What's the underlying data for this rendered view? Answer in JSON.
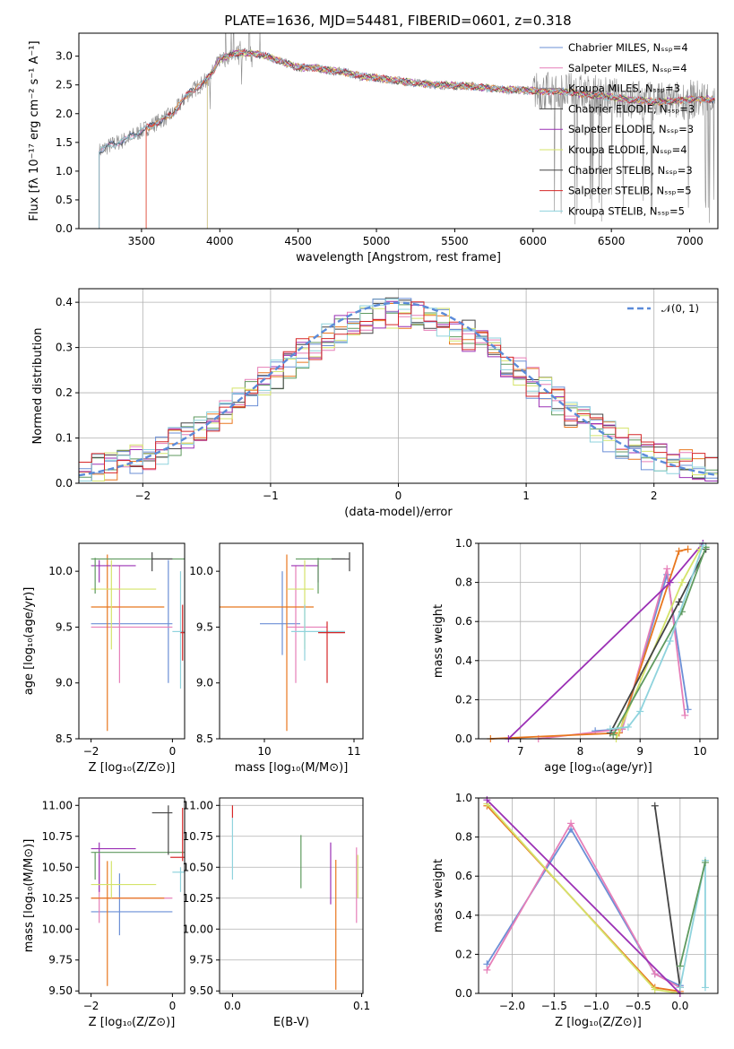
{
  "title": "PLATE=1636, MJD=54481, FIBERID=0601, z=0.318",
  "colors": {
    "blue": "#6b8fd6",
    "pink": "#e67fb8",
    "grey": "#8c8c8c",
    "orange": "#e8771e",
    "purple": "#9b30b5",
    "yellow": "#d4e36a",
    "dark": "#444444",
    "red": "#d62728",
    "cyan": "#8fd3dd",
    "green": "#5f9a5f",
    "dashed": "#5b8bd9"
  },
  "chart_data": [
    {
      "type": "line",
      "name": "spectrum",
      "xlabel": "wavelength [Angstrom, rest frame]",
      "ylabel": "Flux [fλ 10⁻¹⁷ erg cm⁻² s⁻¹ A⁻¹]",
      "xlim": [
        3100,
        7180
      ],
      "ylim": [
        0,
        3.4
      ],
      "xticks": [
        "3500",
        "4000",
        "4500",
        "5000",
        "5500",
        "6000",
        "6500",
        "7000"
      ],
      "yticks": [
        "0.0",
        "0.5",
        "1.0",
        "1.5",
        "2.0",
        "2.5",
        "3.0"
      ],
      "legend": [
        "Chabrier MILES, N_SSP=4",
        "Salpeter MILES, N_SSP=4",
        "Kroupa MILES, N_SSP=3",
        "Chabrier ELODIE, N_SSP=3",
        "Salpeter ELODIE, N_SSP=3",
        "Kroupa ELODIE, N_SSP=4",
        "Chabrier STELIB, N_SSP=3",
        "Salpeter STELIB, N_SSP=5",
        "Kroupa STELIB, N_SSP=5"
      ],
      "legend_placement": "top-right",
      "model_continuum": {
        "x": [
          3230,
          3300,
          3400,
          3500,
          3600,
          3700,
          3800,
          3900,
          3950,
          4000,
          4100,
          4200,
          4300,
          4400,
          4500,
          4600,
          4700,
          4800,
          4900,
          5000,
          5200,
          5400,
          5600,
          5800,
          6000,
          6200,
          6400,
          6600,
          6800,
          7000
        ],
        "y": [
          1.35,
          1.45,
          1.55,
          1.7,
          1.85,
          2.0,
          2.35,
          2.55,
          2.7,
          2.95,
          3.05,
          3.05,
          3.0,
          2.9,
          2.8,
          2.8,
          2.75,
          2.72,
          2.65,
          2.62,
          2.55,
          2.5,
          2.48,
          2.42,
          2.4,
          2.38,
          2.32,
          2.25,
          2.2,
          2.25
        ]
      },
      "cutoffs": {
        "kroupa_stelib_start": 3230,
        "salpeter_stelib_start": 3530,
        "elodie_start": 3920
      }
    },
    {
      "type": "bar",
      "name": "residual_histogram",
      "xlabel": "(data-model)/error",
      "ylabel": "Normed distribution",
      "xlim": [
        -2.5,
        2.5
      ],
      "ylim": [
        0,
        0.43
      ],
      "xticks": [
        "−2",
        "−1",
        "0",
        "1",
        "2"
      ],
      "yticks": [
        "0.0",
        "0.1",
        "0.2",
        "0.3",
        "0.4"
      ],
      "legend": [
        "𝒩(0, 1)"
      ],
      "bin_width": 0.1,
      "normal_curve": {
        "mean": 0,
        "sigma": 1
      }
    },
    {
      "type": "scatter",
      "name": "Z_vs_age",
      "xlabel": "Z [log₁₀(Z/Z⊙)]",
      "ylabel": "age  [log₁₀(age/yr)]",
      "xlim": [
        -2.3,
        0.3
      ],
      "ylim": [
        8.5,
        10.25
      ],
      "xticks": [
        "−2",
        "0"
      ],
      "yticks": [
        "8.5",
        "9.0",
        "9.5",
        "10.0"
      ],
      "crosses": [
        {
          "color": "blue",
          "x": -0.1,
          "y": 9.53,
          "x_lo": -2.0,
          "x_hi": 0.0,
          "y_lo": 9.0,
          "y_hi": 10.1
        },
        {
          "color": "pink",
          "x": -1.3,
          "y": 9.5,
          "x_lo": -2.0,
          "x_hi": 0.0,
          "y_lo": 9.0,
          "y_hi": 10.05
        },
        {
          "color": "orange",
          "x": -1.6,
          "y": 9.68,
          "x_lo": -2.0,
          "x_hi": -0.2,
          "y_lo": 8.57,
          "y_hi": 10.15
        },
        {
          "color": "purple",
          "x": -1.8,
          "y": 10.05,
          "x_lo": -2.0,
          "x_hi": -0.9,
          "y_lo": 9.9,
          "y_hi": 10.1
        },
        {
          "color": "yellow",
          "x": -1.5,
          "y": 9.84,
          "x_lo": -2.0,
          "x_hi": -0.4,
          "y_lo": 9.3,
          "y_hi": 10.1
        },
        {
          "color": "green",
          "x": -1.9,
          "y": 10.11,
          "x_lo": -2.0,
          "x_hi": 0.3,
          "y_lo": 9.8,
          "y_hi": 10.12
        },
        {
          "color": "dark",
          "x": -0.5,
          "y": 10.11,
          "x_lo": -0.5,
          "x_hi": 0.0,
          "y_lo": 10.0,
          "y_hi": 10.17
        },
        {
          "color": "cyan",
          "x": 0.2,
          "y": 9.46,
          "x_lo": 0.0,
          "x_hi": 0.3,
          "y_lo": 8.95,
          "y_hi": 10.0
        },
        {
          "color": "red",
          "x": 0.25,
          "y": 9.45,
          "x_lo": 0.2,
          "x_hi": 0.3,
          "y_lo": 9.2,
          "y_hi": 9.7
        }
      ]
    },
    {
      "type": "scatter",
      "name": "mass_vs_age",
      "xlabel": "mass [log₁₀(M/M⊙)]",
      "ylabel": "",
      "xlim": [
        9.5,
        11.1
      ],
      "ylim": [
        8.5,
        10.25
      ],
      "xticks": [
        "10",
        "11"
      ],
      "yticks": [
        "8.5",
        "9.0",
        "9.5",
        "10.0"
      ],
      "crosses": [
        {
          "color": "blue",
          "x": 10.2,
          "y": 9.53,
          "x_lo": 9.95,
          "x_hi": 10.4,
          "y_lo": 9.25,
          "y_hi": 10.0
        },
        {
          "color": "pink",
          "x": 10.35,
          "y": 9.5,
          "x_lo": 10.25,
          "x_hi": 10.7,
          "y_lo": 9.0,
          "y_hi": 10.05
        },
        {
          "color": "orange",
          "x": 10.25,
          "y": 9.68,
          "x_lo": 9.45,
          "x_hi": 10.55,
          "y_lo": 8.57,
          "y_hi": 10.15
        },
        {
          "color": "purple",
          "x": 10.6,
          "y": 10.05,
          "x_lo": 10.3,
          "x_hi": 10.6,
          "y_lo": 9.9,
          "y_hi": 10.1
        },
        {
          "color": "yellow",
          "x": 10.45,
          "y": 9.84,
          "x_lo": 10.25,
          "x_hi": 10.55,
          "y_lo": 9.3,
          "y_hi": 10.1
        },
        {
          "color": "green",
          "x": 10.6,
          "y": 10.11,
          "x_lo": 10.35,
          "x_hi": 10.9,
          "y_lo": 9.8,
          "y_hi": 10.12
        },
        {
          "color": "dark",
          "x": 10.95,
          "y": 10.11,
          "x_lo": 10.75,
          "x_hi": 10.95,
          "y_lo": 10.0,
          "y_hi": 10.17
        },
        {
          "color": "cyan",
          "x": 10.45,
          "y": 9.46,
          "x_lo": 10.3,
          "x_hi": 10.9,
          "y_lo": 9.2,
          "y_hi": 9.7
        },
        {
          "color": "red",
          "x": 10.7,
          "y": 9.45,
          "x_lo": 10.6,
          "x_hi": 10.9,
          "y_lo": 9.0,
          "y_hi": 9.55
        }
      ]
    },
    {
      "type": "line",
      "name": "age_mass_weight",
      "xlabel": "age  [log₁₀(age/yr)]",
      "ylabel": "mass weight",
      "xlim": [
        6.3,
        10.3
      ],
      "ylim": [
        0,
        1.0
      ],
      "xticks": [
        "7",
        "8",
        "9",
        "10"
      ],
      "yticks": [
        "0.0",
        "0.2",
        "0.4",
        "0.6",
        "0.8",
        "1.0"
      ],
      "series": [
        {
          "color": "blue",
          "x": [
            8.25,
            8.7,
            9.45,
            9.8
          ],
          "y": [
            0.04,
            0.05,
            0.84,
            0.15
          ]
        },
        {
          "color": "pink",
          "x": [
            7.3,
            8.7,
            9.45,
            9.75
          ],
          "y": [
            0.0,
            0.05,
            0.87,
            0.12
          ]
        },
        {
          "color": "orange",
          "x": [
            6.5,
            8.65,
            9.65,
            9.8
          ],
          "y": [
            0.0,
            0.03,
            0.96,
            0.97
          ]
        },
        {
          "color": "purple",
          "x": [
            6.8,
            9.5,
            10.05
          ],
          "y": [
            0.0,
            0.8,
            1.0
          ]
        },
        {
          "color": "yellow",
          "x": [
            8.6,
            9.7,
            10.0
          ],
          "y": [
            0.0,
            0.8,
            0.97
          ]
        },
        {
          "color": "dark",
          "x": [
            8.5,
            9.65,
            10.1
          ],
          "y": [
            0.03,
            0.7,
            0.97
          ]
        },
        {
          "color": "green",
          "x": [
            8.55,
            9.7,
            10.1
          ],
          "y": [
            0.02,
            0.65,
            0.98
          ]
        },
        {
          "color": "cyan",
          "x": [
            8.5,
            8.8,
            9.0,
            9.5,
            10.05
          ],
          "y": [
            0.05,
            0.06,
            0.14,
            0.5,
            0.99
          ]
        }
      ]
    },
    {
      "type": "scatter",
      "name": "Z_vs_mass",
      "xlabel": "Z [log₁₀(Z/Z⊙)]",
      "ylabel": "mass [log₁₀(M/M⊙)]",
      "xlim": [
        -2.3,
        0.3
      ],
      "ylim": [
        9.48,
        11.06
      ],
      "xticks": [
        "−2",
        "0"
      ],
      "yticks": [
        "9.50",
        "9.75",
        "10.00",
        "10.25",
        "10.50",
        "10.75",
        "11.00"
      ],
      "crosses": [
        {
          "color": "blue",
          "x": -1.3,
          "y": 10.14,
          "x_lo": -2.0,
          "x_hi": 0.0,
          "y_lo": 9.95,
          "y_hi": 10.45
        },
        {
          "color": "pink",
          "x": -1.8,
          "y": 10.25,
          "x_lo": -2.0,
          "x_hi": 0.0,
          "y_lo": 10.05,
          "y_hi": 10.6
        },
        {
          "color": "orange",
          "x": -1.6,
          "y": 10.25,
          "x_lo": -2.0,
          "x_hi": -0.2,
          "y_lo": 9.54,
          "y_hi": 10.55
        },
        {
          "color": "purple",
          "x": -1.8,
          "y": 10.65,
          "x_lo": -2.0,
          "x_hi": -0.9,
          "y_lo": 10.3,
          "y_hi": 10.7
        },
        {
          "color": "yellow",
          "x": -1.5,
          "y": 10.36,
          "x_lo": -2.0,
          "x_hi": -0.4,
          "y_lo": 10.25,
          "y_hi": 10.55
        },
        {
          "color": "green",
          "x": -1.9,
          "y": 10.62,
          "x_lo": -2.0,
          "x_hi": 0.3,
          "y_lo": 10.4,
          "y_hi": 10.62
        },
        {
          "color": "dark",
          "x": -0.1,
          "y": 10.94,
          "x_lo": -0.5,
          "x_hi": 0.0,
          "y_lo": 10.6,
          "y_hi": 11.0
        },
        {
          "color": "cyan",
          "x": 0.2,
          "y": 10.46,
          "x_lo": 0.0,
          "x_hi": 0.3,
          "y_lo": 10.3,
          "y_hi": 10.5
        },
        {
          "color": "red",
          "x": 0.25,
          "y": 10.58,
          "x_lo": -0.05,
          "x_hi": 0.3,
          "y_lo": 10.55,
          "y_hi": 10.98
        }
      ]
    },
    {
      "type": "scatter",
      "name": "EBV_vs_mass",
      "xlabel": "E(B-V)",
      "ylabel": "",
      "xlim": [
        -0.01,
        0.101
      ],
      "ylim": [
        9.48,
        11.06
      ],
      "xticks": [
        "0.0",
        "0.1"
      ],
      "yticks": [
        "9.50",
        "9.75",
        "10.00",
        "10.25",
        "10.50",
        "10.75",
        "11.00"
      ],
      "segments": [
        {
          "color": "cyan",
          "x": 0.0,
          "y_lo": 10.4,
          "y_hi": 10.9
        },
        {
          "color": "red",
          "x": 0.0,
          "y_lo": 10.9,
          "y_hi": 11.0
        },
        {
          "color": "green",
          "x": 0.053,
          "y_lo": 10.33,
          "y_hi": 10.76
        },
        {
          "color": "purple",
          "x": 0.076,
          "y_lo": 10.2,
          "y_hi": 10.7
        },
        {
          "color": "orange",
          "x": 0.08,
          "y_lo": 9.51,
          "y_hi": 10.56
        },
        {
          "color": "pink",
          "x": 0.096,
          "y_lo": 10.05,
          "y_hi": 10.66
        },
        {
          "color": "yellow",
          "x": 0.097,
          "y_lo": 10.25,
          "y_hi": 10.6
        }
      ]
    },
    {
      "type": "line",
      "name": "Z_mass_weight",
      "xlabel": "Z [log₁₀(Z/Z⊙)]",
      "ylabel": "mass weight",
      "xlim": [
        -2.4,
        0.45
      ],
      "ylim": [
        0,
        1.0
      ],
      "xticks": [
        "−2.0",
        "−1.5",
        "−1.0",
        "−0.5",
        "0.0"
      ],
      "yticks": [
        "0.0",
        "0.2",
        "0.4",
        "0.6",
        "0.8",
        "1.0"
      ],
      "series": [
        {
          "color": "blue",
          "x": [
            -2.3,
            -1.3,
            -0.3,
            0.0
          ],
          "y": [
            0.15,
            0.84,
            0.1,
            0.04
          ]
        },
        {
          "color": "pink",
          "x": [
            -2.3,
            -1.3,
            -0.3,
            0.0
          ],
          "y": [
            0.12,
            0.87,
            0.1,
            0.03
          ]
        },
        {
          "color": "orange",
          "x": [
            -2.3,
            -0.3,
            0.0
          ],
          "y": [
            0.96,
            0.03,
            0.01
          ]
        },
        {
          "color": "yellow",
          "x": [
            -2.3,
            -0.3,
            0.0
          ],
          "y": [
            0.97,
            0.02,
            0.0
          ]
        },
        {
          "color": "purple",
          "x": [
            -2.3,
            0.0
          ],
          "y": [
            0.99,
            0.0
          ]
        },
        {
          "color": "dark",
          "x": [
            -0.3,
            0.0
          ],
          "y": [
            0.96,
            0.03
          ]
        },
        {
          "color": "cyan",
          "x": [
            0.0,
            0.3,
            0.3
          ],
          "y": [
            0.03,
            0.68,
            0.03
          ]
        },
        {
          "color": "green",
          "x": [
            0.0,
            0.3
          ],
          "y": [
            0.14,
            0.67
          ]
        }
      ]
    }
  ]
}
